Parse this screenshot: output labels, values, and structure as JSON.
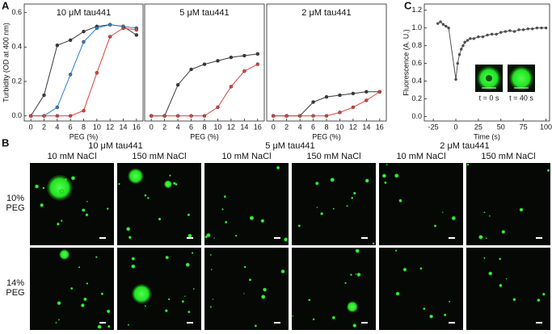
{
  "panel_labels": [
    "A",
    "B",
    "C"
  ],
  "chart_data": [
    {
      "type": "line",
      "title": "10 μM tau441",
      "x_label": "PEG (%)",
      "y_label": "Turbidity (OD at 400 nm)",
      "x": [
        0,
        2,
        4,
        6,
        8,
        10,
        12,
        14,
        16
      ],
      "xlim": [
        -1,
        17
      ],
      "xticks": [
        0,
        2,
        4,
        6,
        8,
        10,
        12,
        14,
        16
      ],
      "ylim": [
        -0.03,
        0.65
      ],
      "yticks": [
        {
          "value": 0,
          "label": "0.0"
        },
        0.2,
        0.4,
        0.6
      ],
      "series": [
        {
          "color": "#3a3a3a",
          "values": [
            0,
            0.12,
            0.41,
            0.44,
            0.49,
            0.52,
            0.53,
            0.52,
            0.47
          ]
        },
        {
          "color": "#2a7fd4",
          "values": [
            0,
            0,
            0.05,
            0.24,
            0.43,
            0.51,
            0.53,
            0.52,
            0.51
          ]
        },
        {
          "color": "#e0413a",
          "values": [
            0,
            0,
            0,
            0,
            0.03,
            0.25,
            0.46,
            0.51,
            0.5
          ]
        }
      ]
    },
    {
      "type": "line",
      "title": "5 μM tau441",
      "x_label": "PEG (%)",
      "x": [
        0,
        2,
        4,
        6,
        8,
        10,
        12,
        14,
        16
      ],
      "xlim": [
        -1,
        17
      ],
      "xticks": [
        0,
        2,
        4,
        6,
        8,
        10,
        12,
        14,
        16
      ],
      "ylim": [
        -0.03,
        0.65
      ],
      "series": [
        {
          "color": "#3a3a3a",
          "values": [
            0,
            0,
            0.18,
            0.27,
            0.3,
            0.32,
            0.34,
            0.35,
            0.36
          ]
        },
        {
          "color": "#e0413a",
          "values": [
            0,
            0,
            0,
            0,
            0,
            0.05,
            0.17,
            0.26,
            0.3
          ]
        }
      ]
    },
    {
      "type": "line",
      "title": "2 μM tau441",
      "x_label": "PEG (%)",
      "x": [
        0,
        2,
        4,
        6,
        8,
        10,
        12,
        14,
        16
      ],
      "xlim": [
        -1,
        17
      ],
      "xticks": [
        0,
        2,
        4,
        6,
        8,
        10,
        12,
        14,
        16
      ],
      "ylim": [
        -0.03,
        0.65
      ],
      "series": [
        {
          "color": "#3a3a3a",
          "values": [
            0,
            0,
            0,
            0.08,
            0.11,
            0.12,
            0.13,
            0.14,
            0.14
          ]
        },
        {
          "color": "#e0413a",
          "values": [
            0,
            0,
            0,
            0,
            0,
            0.02,
            0.05,
            0.09,
            0.14
          ]
        }
      ]
    },
    {
      "type": "line",
      "x_label": "Time (s)",
      "y_label": "Fluorescence (A. U.)",
      "x": [
        -20,
        -17,
        -14,
        -11,
        -8,
        0,
        2,
        4,
        6,
        8,
        10,
        13,
        16,
        20,
        25,
        30,
        35,
        40,
        45,
        50,
        55,
        60,
        65,
        70,
        75,
        80,
        85,
        90,
        95,
        100
      ],
      "xlim": [
        -35,
        104
      ],
      "xticks": [
        -25,
        0,
        25,
        50,
        75,
        100
      ],
      "ylim": [
        -0.05,
        1.27
      ],
      "yticks": [
        {
          "value": 0,
          "label": "0.0"
        },
        0.2,
        0.4,
        0.6,
        0.8,
        {
          "value": 1,
          "label": "1.0"
        },
        1.2
      ],
      "series": [
        {
          "color": "#555555",
          "values": [
            1.05,
            1.07,
            1.04,
            1.02,
            1.0,
            0.42,
            0.6,
            0.7,
            0.76,
            0.8,
            0.84,
            0.86,
            0.88,
            0.88,
            0.9,
            0.9,
            0.92,
            0.93,
            0.93,
            0.95,
            0.96,
            0.97,
            0.96,
            0.98,
            0.98,
            0.99,
            0.99,
            1.0,
            1.0,
            1.0
          ]
        }
      ],
      "insets": [
        "t = 0 s",
        "t = 40 s"
      ]
    }
  ],
  "microscopy": {
    "concentrations": [
      "10 μM tau441",
      "5 μM tau441",
      "2 μM tau441"
    ],
    "salts": [
      "10 mM NaCl",
      "150 mM NaCl",
      "10 mM NaCl",
      "150 mM NaCl",
      "10 mM NaCl",
      "150 mM NaCl"
    ],
    "rows": [
      [
        "10%",
        "PEG"
      ],
      [
        "14%",
        "PEG"
      ]
    ]
  }
}
